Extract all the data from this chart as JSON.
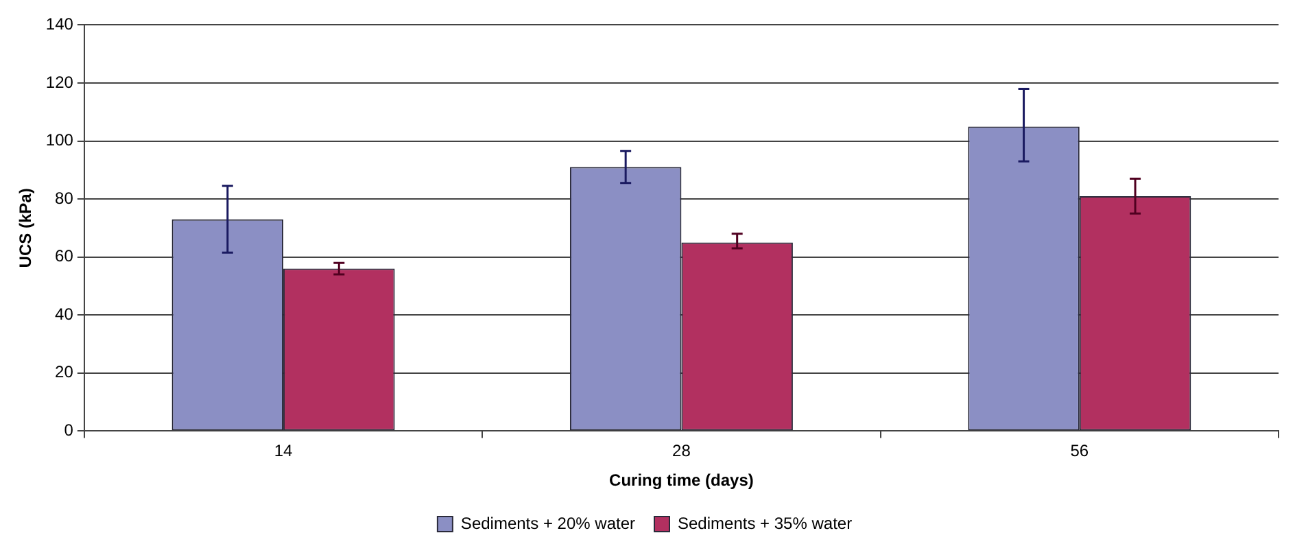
{
  "chart_data": {
    "type": "bar",
    "xlabel": "Curing time (days)",
    "ylabel": "UCS (kPa)",
    "categories": [
      "14",
      "28",
      "56"
    ],
    "series": [
      {
        "name": "Sediments + 20% water",
        "color": "#8b8fc4",
        "values": [
          73,
          91,
          105
        ],
        "errors": [
          [
            61.5,
            84.5
          ],
          [
            85.5,
            96.5
          ],
          [
            93,
            118
          ]
        ]
      },
      {
        "name": "Sediments + 35% water",
        "color": "#b23060",
        "values": [
          56,
          65,
          81
        ],
        "errors": [
          [
            54,
            58
          ],
          [
            63,
            68
          ],
          [
            75,
            87
          ]
        ]
      }
    ],
    "ylim": [
      0,
      140
    ],
    "yticks": [
      0,
      20,
      40,
      60,
      80,
      100,
      120,
      140
    ],
    "grid": "y",
    "legend": "bottom"
  }
}
